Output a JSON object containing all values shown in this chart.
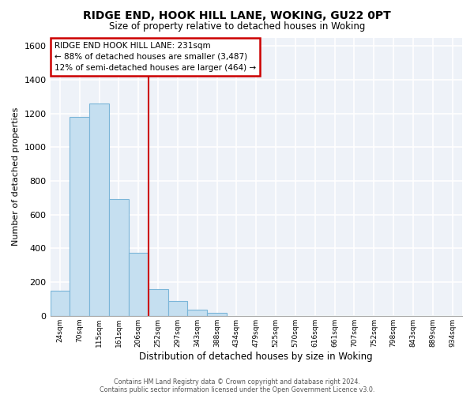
{
  "title": "RIDGE END, HOOK HILL LANE, WOKING, GU22 0PT",
  "subtitle": "Size of property relative to detached houses in Woking",
  "xlabel": "Distribution of detached houses by size in Woking",
  "ylabel": "Number of detached properties",
  "bar_color": "#c5dff0",
  "bar_edge_color": "#7ab5d8",
  "bin_labels": [
    "24sqm",
    "70sqm",
    "115sqm",
    "161sqm",
    "206sqm",
    "252sqm",
    "297sqm",
    "343sqm",
    "388sqm",
    "434sqm",
    "479sqm",
    "525sqm",
    "570sqm",
    "616sqm",
    "661sqm",
    "707sqm",
    "752sqm",
    "798sqm",
    "843sqm",
    "889sqm",
    "934sqm"
  ],
  "bar_heights": [
    150,
    1180,
    1260,
    690,
    375,
    160,
    90,
    35,
    20,
    0,
    0,
    0,
    0,
    0,
    0,
    0,
    0,
    0,
    0,
    0,
    0
  ],
  "ylim": [
    0,
    1650
  ],
  "yticks": [
    0,
    200,
    400,
    600,
    800,
    1000,
    1200,
    1400,
    1600
  ],
  "vline_color": "#cc0000",
  "vline_position": 4.5,
  "annotation_title": "RIDGE END HOOK HILL LANE: 231sqm",
  "annotation_line1": "← 88% of detached houses are smaller (3,487)",
  "annotation_line2": "12% of semi-detached houses are larger (464) →",
  "footer1": "Contains HM Land Registry data © Crown copyright and database right 2024.",
  "footer2": "Contains public sector information licensed under the Open Government Licence v3.0.",
  "bg_color": "#eef2f8",
  "grid_color": "#ffffff"
}
